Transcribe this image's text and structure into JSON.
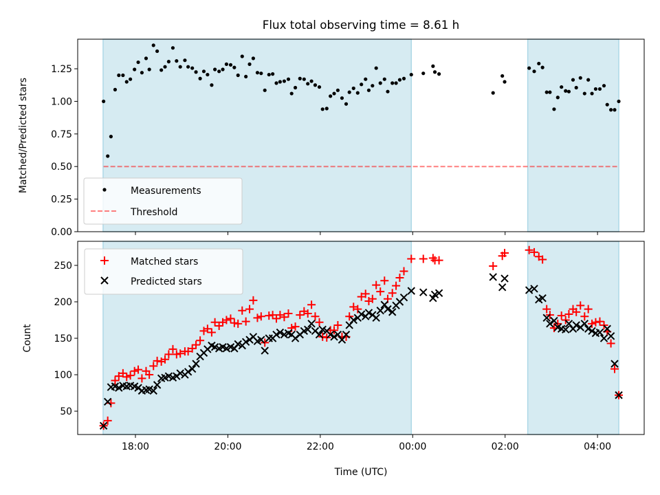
{
  "colors": {
    "shade": "#add8e6",
    "measurement": "#000000",
    "threshold": "#ff0000",
    "matched": "#ff0000",
    "predicted": "#000000"
  },
  "title": "Flux total observing time = 8.61 h",
  "chart_data": [
    {
      "type": "scatter",
      "title": "Flux total observing time = 8.61 h",
      "xlabel": "",
      "ylabel": "Matched/Predicted stars",
      "xlim": [
        16.75,
        29.01
      ],
      "ylim": [
        0,
        1.477
      ],
      "x_unit": "hours UTC since start of first day (values above 24 are the next day)",
      "xticks": [
        18,
        20,
        22,
        24,
        26,
        28
      ],
      "xtick_labels": [
        "18:00",
        "20:00",
        "22:00",
        "00:00",
        "02:00",
        "04:00"
      ],
      "show_xtick_labels": false,
      "yticks": [
        0,
        0.25,
        0.5,
        0.75,
        1.0,
        1.25
      ],
      "ytick_labels": [
        "0.00",
        "0.25",
        "0.50",
        "0.75",
        "1.00",
        "1.25"
      ],
      "grid": false,
      "legend_position": "lower-left",
      "shaded_spans": [
        [
          17.3,
          23.97
        ],
        [
          26.49,
          28.46
        ]
      ],
      "series": [
        {
          "name": "Measurements",
          "kind": "scatter",
          "x": [
            17.31,
            17.4,
            17.47,
            17.56,
            17.64,
            17.73,
            17.81,
            17.89,
            17.98,
            18.06,
            18.14,
            18.23,
            18.3,
            18.39,
            18.47,
            18.56,
            18.64,
            18.72,
            18.81,
            18.89,
            18.97,
            19.07,
            19.14,
            19.23,
            19.31,
            19.4,
            19.48,
            19.56,
            19.65,
            19.72,
            19.81,
            19.89,
            19.97,
            20.06,
            20.14,
            20.22,
            20.31,
            20.39,
            20.47,
            20.55,
            20.64,
            20.72,
            20.8,
            20.89,
            20.97,
            21.05,
            21.13,
            21.22,
            21.31,
            21.38,
            21.46,
            21.56,
            21.65,
            21.73,
            21.81,
            21.89,
            21.98,
            22.05,
            22.14,
            22.22,
            22.3,
            22.38,
            22.47,
            22.56,
            22.63,
            22.72,
            22.81,
            22.89,
            22.98,
            23.05,
            23.13,
            23.21,
            23.3,
            23.39,
            23.46,
            23.56,
            23.64,
            23.72,
            23.81,
            23.97,
            24.23,
            24.44,
            24.48,
            24.57,
            25.74,
            25.94,
            25.99,
            26.52,
            26.63,
            26.73,
            26.81,
            26.9,
            26.97,
            27.06,
            27.14,
            27.22,
            27.31,
            27.38,
            27.47,
            27.54,
            27.63,
            27.72,
            27.8,
            27.88,
            27.96,
            28.05,
            28.14,
            28.21,
            28.29,
            28.37,
            28.46
          ],
          "y": [
            1.0,
            0.58,
            0.73,
            1.09,
            1.2,
            1.2,
            1.15,
            1.17,
            1.245,
            1.3,
            1.22,
            1.33,
            1.245,
            1.43,
            1.385,
            1.24,
            1.265,
            1.305,
            1.41,
            1.31,
            1.265,
            1.315,
            1.265,
            1.255,
            1.225,
            1.175,
            1.23,
            1.205,
            1.125,
            1.245,
            1.23,
            1.245,
            1.285,
            1.28,
            1.26,
            1.2,
            1.345,
            1.19,
            1.285,
            1.33,
            1.22,
            1.215,
            1.085,
            1.205,
            1.21,
            1.14,
            1.15,
            1.155,
            1.17,
            1.06,
            1.105,
            1.175,
            1.17,
            1.135,
            1.155,
            1.125,
            1.11,
            0.94,
            0.945,
            1.04,
            1.06,
            1.085,
            1.025,
            0.98,
            1.07,
            1.1,
            1.065,
            1.13,
            1.17,
            1.085,
            1.12,
            1.255,
            1.14,
            1.17,
            1.075,
            1.14,
            1.14,
            1.165,
            1.175,
            1.205,
            1.215,
            1.27,
            1.225,
            1.21,
            1.065,
            1.195,
            1.15,
            1.255,
            1.23,
            1.29,
            1.26,
            1.07,
            1.07,
            0.94,
            1.03,
            1.11,
            1.08,
            1.075,
            1.165,
            1.105,
            1.18,
            1.06,
            1.165,
            1.06,
            1.095,
            1.095,
            1.12,
            0.975,
            0.935,
            0.935,
            1.0
          ]
        },
        {
          "name": "Threshold",
          "kind": "hline",
          "y": 0.5,
          "x_range": [
            17.31,
            28.46
          ]
        }
      ]
    },
    {
      "type": "scatter",
      "title": "",
      "xlabel": "Time (UTC)",
      "ylabel": "Count",
      "xlim": [
        16.75,
        29.01
      ],
      "ylim": [
        18,
        283
      ],
      "xticks": [
        18,
        20,
        22,
        24,
        26,
        28
      ],
      "xtick_labels": [
        "18:00",
        "20:00",
        "22:00",
        "00:00",
        "02:00",
        "04:00"
      ],
      "show_xtick_labels": true,
      "yticks": [
        50,
        100,
        150,
        200,
        250
      ],
      "ytick_labels": [
        "50",
        "100",
        "150",
        "200",
        "250"
      ],
      "grid": false,
      "legend_position": "upper-left",
      "shaded_spans": [
        [
          17.3,
          23.97
        ],
        [
          26.49,
          28.46
        ]
      ],
      "series": [
        {
          "name": "Matched stars",
          "kind": "scatter-plus",
          "x": [
            17.31,
            17.4,
            17.47,
            17.56,
            17.64,
            17.73,
            17.81,
            17.89,
            17.98,
            18.06,
            18.14,
            18.23,
            18.3,
            18.39,
            18.47,
            18.56,
            18.64,
            18.72,
            18.81,
            18.89,
            18.97,
            19.07,
            19.14,
            19.23,
            19.31,
            19.4,
            19.48,
            19.56,
            19.65,
            19.72,
            19.81,
            19.89,
            19.97,
            20.06,
            20.14,
            20.22,
            20.31,
            20.39,
            20.47,
            20.55,
            20.64,
            20.72,
            20.8,
            20.89,
            20.97,
            21.05,
            21.13,
            21.22,
            21.31,
            21.38,
            21.46,
            21.56,
            21.65,
            21.73,
            21.81,
            21.89,
            21.98,
            22.05,
            22.14,
            22.22,
            22.3,
            22.38,
            22.47,
            22.56,
            22.63,
            22.72,
            22.81,
            22.89,
            22.98,
            23.05,
            23.13,
            23.21,
            23.3,
            23.39,
            23.46,
            23.56,
            23.64,
            23.72,
            23.81,
            23.97,
            24.23,
            24.44,
            24.48,
            24.57,
            25.74,
            25.94,
            25.99,
            26.52,
            26.63,
            26.73,
            26.81,
            26.9,
            26.97,
            27.06,
            27.14,
            27.22,
            27.31,
            27.38,
            27.47,
            27.54,
            27.63,
            27.72,
            27.8,
            27.88,
            27.96,
            28.05,
            28.14,
            28.21,
            28.29,
            28.37,
            28.46
          ],
          "y": [
            30,
            37,
            61,
            92,
            98,
            102,
            97,
            99,
            105,
            107,
            95,
            105,
            100,
            112,
            119,
            118,
            121,
            128,
            135,
            128,
            129,
            132,
            132,
            136,
            141,
            147,
            160,
            163,
            158,
            172,
            167,
            172,
            175,
            177,
            171,
            170,
            188,
            173,
            190,
            202,
            178,
            180,
            144,
            181,
            182,
            177,
            182,
            179,
            184,
            164,
            166,
            182,
            187,
            184,
            196,
            180,
            172,
            152,
            151,
            161,
            161,
            168,
            152,
            152,
            180,
            193,
            190,
            207,
            211,
            201,
            204,
            223,
            214,
            229,
            204,
            212,
            222,
            233,
            242,
            259,
            259,
            260,
            257,
            257,
            249,
            263,
            267,
            271,
            268,
            262,
            258,
            190,
            182,
            164,
            170,
            181,
            175,
            183,
            190,
            186,
            195,
            180,
            190,
            170,
            172,
            173,
            168,
            159,
            143,
            108,
            72
          ]
        },
        {
          "name": "Predicted stars",
          "kind": "scatter-x",
          "x": [
            17.31,
            17.4,
            17.47,
            17.56,
            17.64,
            17.73,
            17.81,
            17.89,
            17.98,
            18.06,
            18.14,
            18.23,
            18.3,
            18.39,
            18.47,
            18.56,
            18.64,
            18.72,
            18.81,
            18.89,
            18.97,
            19.07,
            19.14,
            19.23,
            19.31,
            19.4,
            19.48,
            19.56,
            19.65,
            19.72,
            19.81,
            19.89,
            19.97,
            20.06,
            20.14,
            20.22,
            20.31,
            20.39,
            20.47,
            20.55,
            20.64,
            20.72,
            20.8,
            20.89,
            20.97,
            21.05,
            21.13,
            21.22,
            21.31,
            21.38,
            21.46,
            21.56,
            21.65,
            21.73,
            21.81,
            21.89,
            21.98,
            22.05,
            22.14,
            22.22,
            22.3,
            22.38,
            22.47,
            22.56,
            22.63,
            22.72,
            22.81,
            22.89,
            22.98,
            23.05,
            23.13,
            23.21,
            23.3,
            23.39,
            23.46,
            23.56,
            23.64,
            23.72,
            23.81,
            23.97,
            24.23,
            24.44,
            24.48,
            24.57,
            25.74,
            25.94,
            25.99,
            26.52,
            26.63,
            26.73,
            26.81,
            26.9,
            26.97,
            27.06,
            27.14,
            27.22,
            27.31,
            27.38,
            27.47,
            27.54,
            27.63,
            27.72,
            27.8,
            27.88,
            27.96,
            28.05,
            28.14,
            28.21,
            28.29,
            28.37,
            28.46
          ],
          "y": [
            30,
            63,
            83,
            84,
            82,
            85,
            84,
            85,
            84,
            82,
            78,
            79,
            80,
            78,
            86,
            95,
            96,
            98,
            96,
            98,
            102,
            100,
            104,
            108,
            115,
            125,
            130,
            135,
            140,
            138,
            136,
            138,
            136,
            138,
            136,
            142,
            140,
            145,
            148,
            152,
            146,
            148,
            133,
            150,
            150,
            155,
            158,
            155,
            157,
            155,
            150,
            155,
            160,
            162,
            170,
            160,
            155,
            162,
            160,
            155,
            152,
            155,
            148,
            155,
            168,
            175,
            178,
            183,
            180,
            185,
            182,
            178,
            188,
            196,
            190,
            186,
            195,
            200,
            206,
            215,
            213,
            205,
            210,
            212,
            234,
            220,
            232,
            216,
            218,
            203,
            205,
            178,
            170,
            174,
            165,
            163,
            162,
            170,
            163,
            168,
            165,
            170,
            163,
            160,
            157,
            158,
            150,
            163,
            153,
            115,
            72
          ]
        }
      ]
    }
  ]
}
